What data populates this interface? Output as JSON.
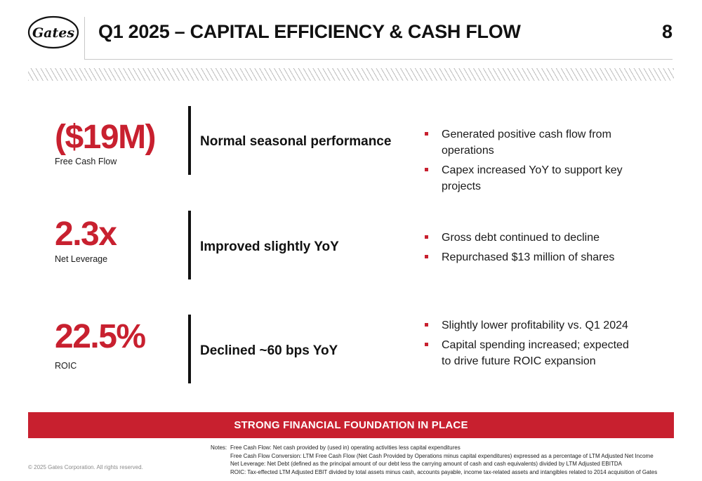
{
  "header": {
    "logo_text": "Gates",
    "title": "Q1 2025 – CAPITAL EFFICIENCY & CASH FLOW",
    "page_number": "8"
  },
  "metrics": [
    {
      "value": "($19M)",
      "label": "Free Cash Flow",
      "summary": "Normal seasonal performance",
      "bullets": [
        "Generated positive cash flow from operations",
        "Capex increased YoY to support key projects"
      ]
    },
    {
      "value": "2.3x",
      "label": "Net Leverage",
      "summary": "Improved slightly YoY",
      "bullets": [
        "Gross debt continued to decline",
        "Repurchased $13 million of shares"
      ]
    },
    {
      "value": "22.5%",
      "label": "ROIC",
      "summary": "Declined ~60 bps YoY",
      "bullets": [
        "Slightly lower profitability vs. Q1 2024",
        "Capital spending increased; expected to drive future ROIC expansion"
      ]
    }
  ],
  "banner": "STRONG FINANCIAL FOUNDATION IN PLACE",
  "footer": {
    "copyright": "© 2025 Gates Corporation. All rights reserved.",
    "notes_label": "Notes:",
    "notes": [
      "Free Cash Flow: Net cash provided by (used in) operating activities less capital expenditures",
      "Free Cash Flow Conversion:  LTM Free Cash Flow (Net Cash Provided by Operations minus capital expenditures) expressed as a percentage of LTM Adjusted Net Income",
      "Net Leverage:  Net Debt (defined as the principal amount of our debt less the carrying amount of cash and cash equivalents) divided by LTM Adjusted EBITDA",
      "ROIC:  Tax-effected LTM Adjusted EBIT divided by total assets minus cash, accounts payable, income tax-related assets and intangibles related to 2014 acquisition of Gates"
    ]
  },
  "colors": {
    "accent": "#c8202f",
    "text": "#111111"
  }
}
